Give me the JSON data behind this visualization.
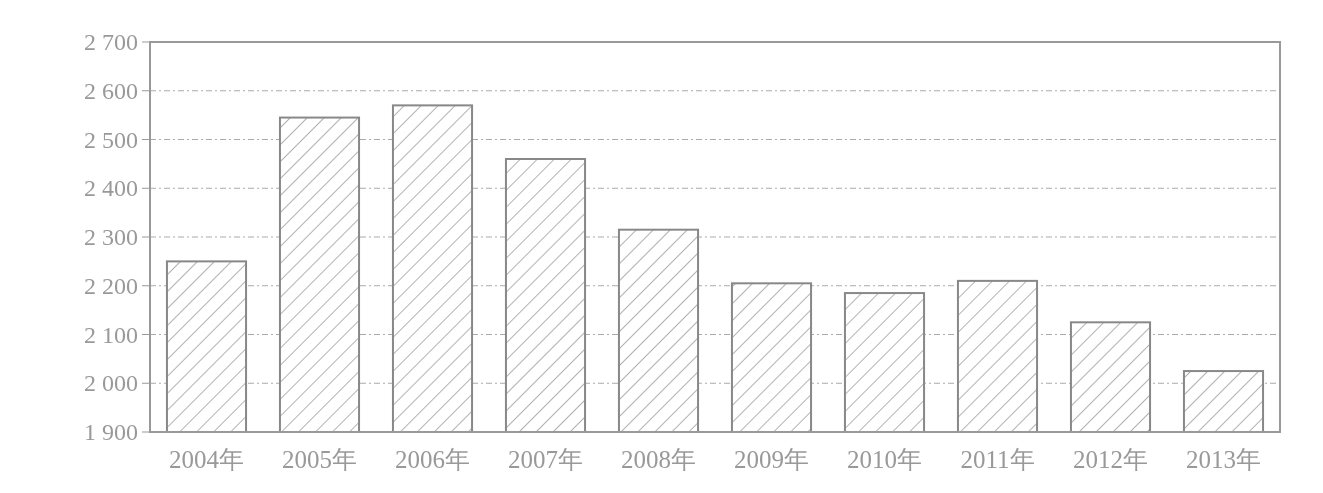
{
  "chart_data": {
    "type": "bar",
    "categories": [
      "2004年",
      "2005年",
      "2006年",
      "2007年",
      "2008年",
      "2009年",
      "2010年",
      "2011年",
      "2012年",
      "2013年"
    ],
    "values": [
      2250,
      2545,
      2570,
      2460,
      2315,
      2205,
      2185,
      2210,
      2125,
      2025
    ],
    "color": "#888888",
    "ylim": [
      1900,
      2700
    ],
    "yticks": [
      {
        "value": 1900,
        "label": "1 900"
      },
      {
        "value": 2000,
        "label": "2 000"
      },
      {
        "value": 2100,
        "label": "2 100"
      },
      {
        "value": 2200,
        "label": "2 200"
      },
      {
        "value": 2300,
        "label": "2 300"
      },
      {
        "value": 2400,
        "label": "2 400"
      },
      {
        "value": 2500,
        "label": "2 500"
      },
      {
        "value": 2600,
        "label": "2 600"
      },
      {
        "value": 2700,
        "label": "2 700"
      }
    ],
    "grid": "y"
  }
}
